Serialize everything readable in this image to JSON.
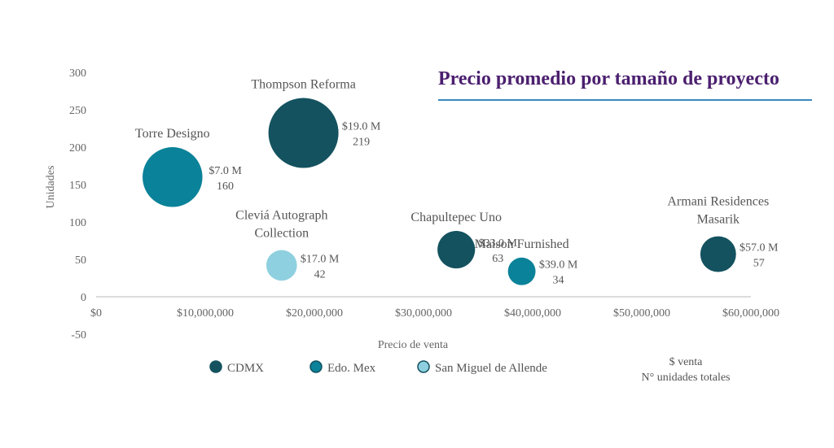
{
  "chart_data": {
    "type": "bubble",
    "title": "Precio promedio por tamaño de proyecto",
    "xlabel": "Precio de venta",
    "ylabel": "Unidades",
    "xlim": [
      0,
      60000000
    ],
    "ylim": [
      -50,
      300
    ],
    "x_ticks": [
      "$0",
      "$10,000,000",
      "$20,000,000",
      "$30,000,000",
      "$40,000,000",
      "$50,000,000",
      "$60,000,000"
    ],
    "x_tick_values": [
      0,
      10000000,
      20000000,
      30000000,
      40000000,
      50000000,
      60000000
    ],
    "y_ticks": [
      "300",
      "250",
      "200",
      "150",
      "100",
      "50",
      "0",
      "-50"
    ],
    "y_tick_values": [
      300,
      250,
      200,
      150,
      100,
      50,
      0,
      -50
    ],
    "legend": [
      {
        "name": "CDMX",
        "color": "#14525f"
      },
      {
        "name": "Edo. Mex",
        "color": "#0a8299"
      },
      {
        "name": "San Miguel de Allende",
        "color": "#8fd0e0"
      }
    ],
    "bubble_key": [
      "$ venta",
      "N° unidades totales"
    ],
    "points": [
      {
        "name": [
          "Thompson Reforma"
        ],
        "x": 19000000,
        "y": 219,
        "size": 219,
        "region": "CDMX",
        "label": [
          "$19.0 M",
          "219"
        ]
      },
      {
        "name": [
          "Torre Designo"
        ],
        "x": 7000000,
        "y": 160,
        "size": 160,
        "region": "Edo. Mex",
        "label": [
          "$7.0 M",
          "160"
        ]
      },
      {
        "name": [
          "Cleviá Autograph",
          "Collection"
        ],
        "x": 17000000,
        "y": 42,
        "size": 42,
        "region": "San Miguel de Allende",
        "label": [
          "$17.0 M",
          "42"
        ]
      },
      {
        "name": [
          "Chapultepec Uno"
        ],
        "x": 33000000,
        "y": 63,
        "size": 63,
        "region": "CDMX",
        "label": [
          "$33.0 M",
          "63"
        ]
      },
      {
        "name": [
          "Maison Furnished"
        ],
        "x": 39000000,
        "y": 34,
        "size": 34,
        "region": "Edo. Mex",
        "label": [
          "$39.0 M",
          "34"
        ]
      },
      {
        "name": [
          "Armani Residences",
          "Masarik"
        ],
        "x": 57000000,
        "y": 57,
        "size": 57,
        "region": "CDMX",
        "label": [
          "$57.0 M",
          "57"
        ]
      }
    ]
  }
}
